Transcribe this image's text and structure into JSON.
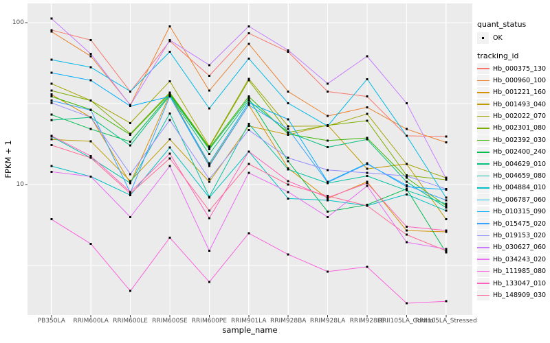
{
  "colors": {
    "panel_bg": "#EBEBEB",
    "gridline": "#FFFFFF",
    "axis_text": "#4D4D4D",
    "tick_mark": "#333333",
    "legend_key_bg": "#F2F2F2",
    "marker": "#000000"
  },
  "legend": {
    "quant_status_title": "quant_status",
    "quant_status_items": [
      {
        "label": "OK",
        "marker_color": "#000000"
      }
    ],
    "tracking_id_title": "tracking_id"
  },
  "chart_data": {
    "type": "line",
    "title": "",
    "xlabel": "sample_name",
    "ylabel": "FPKM + 1",
    "y_scale": "log10",
    "ylim": [
      1.6,
      130
    ],
    "grid": true,
    "legend_position": "right",
    "marker": "small-black-square",
    "y_axis_ticks": [
      {
        "label": "100",
        "value": 100
      },
      {
        "label": "10",
        "value": 10
      }
    ],
    "y_minor_gridlines": [
      31.623,
      3.1623
    ],
    "categories": [
      "PB350LA",
      "RRIM600LA",
      "RRIM600LE",
      "RRIM600SE",
      "RRIM600PE",
      "RRIM901LA",
      "RRIM928BA",
      "RRIM928LA",
      "RRIM928LE",
      "RRII105LA_Control",
      "RRII105LA_Stressed"
    ],
    "series": [
      {
        "name": "Hb_000375_130",
        "color": "#F8766D",
        "values": [
          90,
          78,
          37.5,
          77,
          47,
          86,
          66,
          37.5,
          35,
          20,
          19.8
        ]
      },
      {
        "name": "Hb_000960_100",
        "color": "#EA8331",
        "values": [
          88,
          62,
          31,
          95,
          38,
          74,
          37.5,
          26.5,
          30,
          22,
          18.2
        ]
      },
      {
        "name": "Hb_001221_160",
        "color": "#D89000",
        "values": [
          36,
          26,
          10.2,
          36,
          13.2,
          31,
          12.6,
          8.2,
          10.4,
          5.2,
          5.1
        ]
      },
      {
        "name": "Hb_001493_040",
        "color": "#C09B00",
        "values": [
          19,
          18.5,
          10.5,
          19,
          10.4,
          23,
          20.3,
          23.3,
          12.5,
          13.4,
          6.1
        ]
      },
      {
        "name": "Hb_002022_070",
        "color": "#A3A500",
        "values": [
          42,
          33,
          24,
          43.5,
          17.2,
          45,
          22.9,
          23,
          27.3,
          13.4,
          11
        ]
      },
      {
        "name": "Hb_002301_080",
        "color": "#7CAE00",
        "values": [
          38,
          33,
          20.6,
          37,
          17,
          44,
          21,
          23.2,
          24.8,
          11.4,
          10.7
        ]
      },
      {
        "name": "Hb_002392_030",
        "color": "#39B600",
        "values": [
          35,
          29,
          20.3,
          36.5,
          16.8,
          35,
          20.5,
          18.7,
          19.4,
          11,
          7.4
        ]
      },
      {
        "name": "Hb_002400_240",
        "color": "#00BB4E",
        "values": [
          27,
          22,
          18.4,
          36,
          16.5,
          34,
          13.9,
          6.8,
          7.5,
          9.4,
          3.8
        ]
      },
      {
        "name": "Hb_004629_010",
        "color": "#00BF7D",
        "values": [
          25,
          26,
          17.4,
          35.5,
          15.4,
          33,
          21,
          17,
          19,
          10.4,
          7.2
        ]
      },
      {
        "name": "Hb_004659_080",
        "color": "#00C1A3",
        "values": [
          19.8,
          14.6,
          10.2,
          27.5,
          8.4,
          23.7,
          12.4,
          10.2,
          11.3,
          9.2,
          7.6
        ]
      },
      {
        "name": "Hb_004884_010",
        "color": "#00BFC4",
        "values": [
          13,
          11.2,
          8.6,
          16.9,
          8.3,
          16,
          8.2,
          8,
          7.4,
          8.7,
          6.9
        ]
      },
      {
        "name": "Hb_006787_060",
        "color": "#00B8E7",
        "values": [
          59,
          53,
          37.6,
          66,
          29.5,
          60,
          31.8,
          23,
          44.8,
          20,
          8.3
        ]
      },
      {
        "name": "Hb_010315_090",
        "color": "#00ACFC",
        "values": [
          49,
          44,
          30.5,
          35,
          13.5,
          32,
          25.3,
          10.4,
          13.5,
          9.7,
          9.3
        ]
      },
      {
        "name": "Hb_015475_020",
        "color": "#35A2FF",
        "values": [
          33,
          28.8,
          8.9,
          35,
          13,
          31,
          22,
          10.3,
          13.4,
          9.9,
          8
        ]
      },
      {
        "name": "Hb_019153_020",
        "color": "#9590FF",
        "values": [
          32,
          26,
          11.6,
          25,
          10.8,
          21.7,
          14.6,
          12.3,
          11.8,
          11.3,
          9.4
        ]
      },
      {
        "name": "Hb_030627_060",
        "color": "#C77CFF",
        "values": [
          106,
          64,
          30.9,
          78,
          54.7,
          95,
          67.5,
          42,
          62,
          31.8,
          10.9
        ]
      },
      {
        "name": "Hb_034243_020",
        "color": "#E76BF3",
        "values": [
          12,
          11.2,
          6.3,
          13,
          3.9,
          11.8,
          9,
          6.3,
          9.8,
          4.4,
          4
        ]
      },
      {
        "name": "Hb_111985_080",
        "color": "#FA62DB",
        "values": [
          6.1,
          4.3,
          2.2,
          4.7,
          2.5,
          5,
          3.7,
          2.9,
          3.1,
          1.85,
          1.9
        ]
      },
      {
        "name": "Hb_133047_010",
        "color": "#FF62BC",
        "values": [
          20,
          15,
          9,
          15.5,
          6.2,
          16,
          10.5,
          8.3,
          10.2,
          5.5,
          5.2
        ]
      },
      {
        "name": "Hb_148909_030",
        "color": "#FF6A98",
        "values": [
          17.5,
          14.6,
          8.8,
          14.5,
          6.9,
          13.4,
          10,
          8.5,
          7.4,
          4.9,
          3.9
        ]
      }
    ]
  }
}
